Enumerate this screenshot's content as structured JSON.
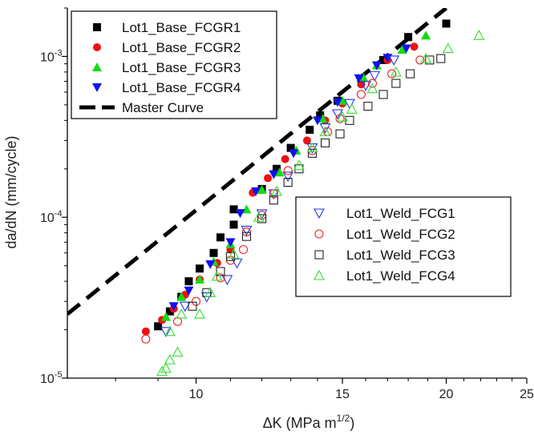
{
  "chart_data": {
    "type": "scatter",
    "xscale": "log",
    "yscale": "log",
    "xlim": [
      7,
      25
    ],
    "ylim": [
      1e-05,
      0.002
    ],
    "xlabel_main": "ΔK (MPa m",
    "xlabel_sup": "1/2",
    "xlabel_end": ")",
    "ylabel": "da/dN (mm/cycle)",
    "xticks": [
      10,
      15,
      20,
      25
    ],
    "yticks": [
      {
        "value": 1e-05,
        "mantissa": "10",
        "exp": "-5"
      },
      {
        "value": 0.0001,
        "mantissa": "10",
        "exp": "-4"
      },
      {
        "value": 0.001,
        "mantissa": "10",
        "exp": "-3"
      }
    ],
    "grid": false,
    "legends": [
      {
        "placement": "top-left",
        "entries": [
          "Lot1_Base_FCGR1",
          "Lot1_Base_FCGR2",
          "Lot1_Base_FCGR3",
          "Lot1_Base_FCGR4",
          "Master Curve"
        ]
      },
      {
        "placement": "center-right",
        "entries": [
          "Lot1_Weld_FCG1",
          "Lot1_Weld_FCG2",
          "Lot1_Weld_FCG3",
          "Lot1_Weld_FCG4"
        ]
      }
    ],
    "series": [
      {
        "name": "Lot1_Base_FCGR1",
        "marker": "square",
        "filled": true,
        "color": "#000000",
        "points": [
          [
            9.0,
            2.1e-05
          ],
          [
            9.3,
            2.6e-05
          ],
          [
            9.6,
            3.2e-05
          ],
          [
            9.8,
            4e-05
          ],
          [
            10.1,
            4.8e-05
          ],
          [
            10.5,
            6e-05
          ],
          [
            10.7,
            7.5e-05
          ],
          [
            11.1,
            0.000112
          ],
          [
            11.1,
            9e-05
          ],
          [
            12.0,
            0.00015
          ],
          [
            12.5,
            0.0002
          ],
          [
            13.0,
            0.00027
          ],
          [
            13.7,
            0.00035
          ],
          [
            14.1,
            0.00043
          ],
          [
            14.8,
            0.00053
          ],
          [
            15.8,
            0.00073
          ],
          [
            16.8,
            0.00095
          ],
          [
            18.0,
            0.00132
          ],
          [
            20.0,
            0.0016
          ]
        ]
      },
      {
        "name": "Lot1_Base_FCGR2",
        "marker": "circle",
        "filled": true,
        "color": "#ee1111",
        "points": [
          [
            8.7,
            1.95e-05
          ],
          [
            9.1,
            2.3e-05
          ],
          [
            9.4,
            2.7e-05
          ],
          [
            9.7,
            3.3e-05
          ],
          [
            10.1,
            4.1e-05
          ],
          [
            10.6,
            5.2e-05
          ],
          [
            11.0,
            6.3e-05
          ],
          [
            11.7,
            0.000142
          ],
          [
            12.2,
            0.000175
          ],
          [
            12.8,
            0.00023
          ],
          [
            13.6,
            0.0003
          ],
          [
            14.3,
            0.0004
          ],
          [
            15.0,
            0.00051
          ],
          [
            15.8,
            0.00067
          ],
          [
            17.0,
            0.00095
          ],
          [
            18.3,
            0.00115
          ]
        ]
      },
      {
        "name": "Lot1_Base_FCGR3",
        "marker": "triangle-up",
        "filled": true,
        "color": "#11dd11",
        "points": [
          [
            9.2,
            2.4e-05
          ],
          [
            9.6,
            3.2e-05
          ],
          [
            10.1,
            4.1e-05
          ],
          [
            10.5,
            5.3e-05
          ],
          [
            11.0,
            6.8e-05
          ],
          [
            11.5,
            0.000112
          ],
          [
            12.0,
            0.000148
          ],
          [
            12.6,
            0.00019
          ],
          [
            13.2,
            0.00026
          ],
          [
            14.2,
            0.00041
          ],
          [
            15.0,
            0.00053
          ],
          [
            15.9,
            0.00074
          ],
          [
            16.5,
            0.00088
          ],
          [
            17.7,
            0.0011
          ],
          [
            18.9,
            0.00135
          ]
        ]
      },
      {
        "name": "Lot1_Base_FCGR4",
        "marker": "triangle-down",
        "filled": true,
        "color": "#1111ee",
        "points": [
          [
            9.4,
            2.8e-05
          ],
          [
            9.8,
            3.5e-05
          ],
          [
            10.4,
            5.1e-05
          ],
          [
            11.0,
            7e-05
          ],
          [
            11.3,
            0.000106
          ],
          [
            11.8,
            0.000145
          ],
          [
            12.4,
            0.000185
          ],
          [
            13.1,
            0.00025
          ],
          [
            14.0,
            0.0004
          ],
          [
            14.8,
            0.00052
          ],
          [
            15.7,
            0.00073
          ],
          [
            16.5,
            0.00088
          ],
          [
            17.0,
            0.00098
          ],
          [
            17.9,
            0.00112
          ]
        ]
      },
      {
        "name": "Lot1_Weld_FCG1",
        "marker": "triangle-down",
        "filled": false,
        "color": "#2233ee",
        "points": [
          [
            9.2,
            1.95e-05
          ],
          [
            9.7,
            2.8e-05
          ],
          [
            10.3,
            3.2e-05
          ],
          [
            10.9,
            4.1e-05
          ],
          [
            11.2,
            5.2e-05
          ],
          [
            11.5,
            8.3e-05
          ],
          [
            12.0,
            0.000105
          ],
          [
            12.4,
            0.00014
          ],
          [
            12.9,
            0.00018
          ],
          [
            13.8,
            0.00027
          ],
          [
            14.3,
            0.00036
          ],
          [
            14.8,
            0.00044
          ],
          [
            15.3,
            0.00051
          ],
          [
            16.0,
            0.00066
          ],
          [
            16.4,
            0.00076
          ],
          [
            17.3,
            0.00095
          ]
        ]
      },
      {
        "name": "Lot1_Weld_FCG2",
        "marker": "circle",
        "filled": false,
        "color": "#ee2222",
        "points": [
          [
            8.7,
            1.75e-05
          ],
          [
            9.5,
            2.25e-05
          ],
          [
            10.0,
            3e-05
          ],
          [
            10.7,
            4.2e-05
          ],
          [
            11.0,
            5.4e-05
          ],
          [
            11.4,
            6.3e-05
          ],
          [
            11.5,
            8.1e-05
          ],
          [
            12.0,
            0.000103
          ],
          [
            12.4,
            0.00014
          ],
          [
            12.9,
            0.000195
          ],
          [
            13.8,
            0.00026
          ],
          [
            14.4,
            0.00034
          ],
          [
            14.9,
            0.00041
          ],
          [
            15.8,
            0.00058
          ],
          [
            16.3,
            0.00068
          ],
          [
            17.2,
            0.00078
          ],
          [
            18.6,
            0.00095
          ]
        ]
      },
      {
        "name": "Lot1_Weld_FCG3",
        "marker": "square",
        "filled": false,
        "color": "#222222",
        "points": [
          [
            9.9,
            2.8e-05
          ],
          [
            10.3,
            3.4e-05
          ],
          [
            10.7,
            4.6e-05
          ],
          [
            11.0,
            5.7e-05
          ],
          [
            11.5,
            7.6e-05
          ],
          [
            12.0,
            9.8e-05
          ],
          [
            12.4,
            0.000128
          ],
          [
            12.9,
            0.000165
          ],
          [
            13.3,
            0.0002
          ],
          [
            13.8,
            0.00025
          ],
          [
            14.3,
            0.00029
          ],
          [
            14.9,
            0.00033
          ],
          [
            15.3,
            0.0004
          ],
          [
            16.1,
            0.00049
          ],
          [
            16.8,
            0.00058
          ],
          [
            17.4,
            0.00068
          ],
          [
            18.1,
            0.00078
          ],
          [
            19.1,
            0.00095
          ],
          [
            19.7,
            0.00097
          ]
        ]
      },
      {
        "name": "Lot1_Weld_FCG4",
        "marker": "triangle-up",
        "filled": false,
        "color": "#33dd33",
        "points": [
          [
            9.1,
            1.1e-05
          ],
          [
            9.2,
            1.15e-05
          ],
          [
            9.3,
            1.3e-05
          ],
          [
            9.5,
            1.45e-05
          ],
          [
            9.3,
            1.95e-05
          ],
          [
            9.6,
            2.5e-05
          ],
          [
            10.1,
            2.5e-05
          ],
          [
            10.4,
            3.4e-05
          ],
          [
            10.6,
            4.3e-05
          ],
          [
            11.1,
            5.9e-05
          ],
          [
            11.9,
            0.0001
          ],
          [
            12.5,
            0.000145
          ],
          [
            13.3,
            0.00021
          ],
          [
            13.8,
            0.00027
          ],
          [
            14.3,
            0.00034
          ],
          [
            15.0,
            0.00042
          ],
          [
            15.4,
            0.00047
          ],
          [
            16.3,
            0.00063
          ],
          [
            17.4,
            0.0008
          ],
          [
            18.9,
            0.00097
          ],
          [
            20.1,
            0.00112
          ],
          [
            21.9,
            0.00135
          ]
        ]
      }
    ],
    "master_curve": {
      "name": "Master Curve",
      "style": "dashed",
      "color": "#000000",
      "points": [
        [
          7.0,
          2.5e-05
        ],
        [
          20.0,
          0.002
        ]
      ]
    }
  }
}
